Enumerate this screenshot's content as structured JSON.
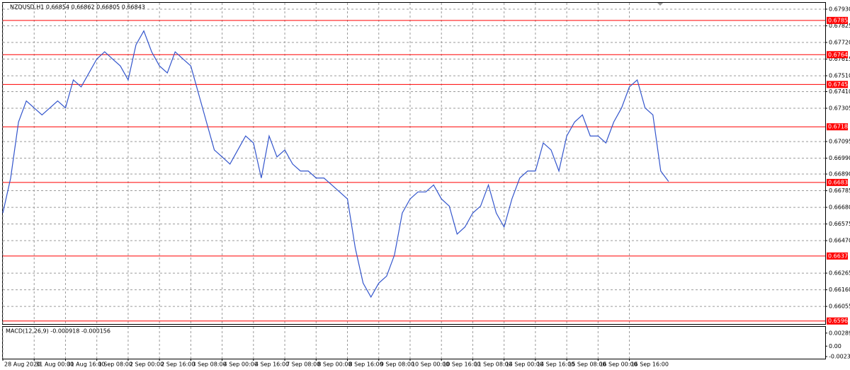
{
  "chart_data": {
    "type": "line",
    "title": "NZDUSD,H1  0.66854 0.66862 0.66805 0.66843",
    "series": [
      {
        "name": "NZDUSD",
        "color": "#3355cc",
        "values": [
          0.66644,
          0.66865,
          0.67218,
          0.67351,
          0.67307,
          0.67263,
          0.67307,
          0.67351,
          0.67307,
          0.67484,
          0.6744,
          0.67528,
          0.67616,
          0.67661,
          0.67616,
          0.67572,
          0.67484,
          0.67705,
          0.67793,
          0.67661,
          0.67572,
          0.67528,
          0.67661,
          0.67616,
          0.67572,
          0.67395,
          0.67218,
          0.67042,
          0.66998,
          0.66953,
          0.67042,
          0.6713,
          0.67086,
          0.66865,
          0.6713,
          0.66998,
          0.67042,
          0.66953,
          0.66909,
          0.66909,
          0.66865,
          0.66865,
          0.66821,
          0.66777,
          0.66733,
          0.66423,
          0.66202,
          0.66114,
          0.66202,
          0.66246,
          0.66379,
          0.66644,
          0.66733,
          0.66777,
          0.66777,
          0.66821,
          0.66733,
          0.66688,
          0.66511,
          0.66556,
          0.66644,
          0.66688,
          0.66821,
          0.66644,
          0.66556,
          0.66733,
          0.66865,
          0.66909,
          0.66909,
          0.67086,
          0.67042,
          0.66909,
          0.6713,
          0.67218,
          0.67263,
          0.6713,
          0.6713,
          0.67086,
          0.67218,
          0.67307,
          0.6744,
          0.67484,
          0.67307,
          0.67263,
          0.66909,
          0.66843
        ]
      }
    ],
    "xlim": [
      0,
      105
    ],
    "xticks": [
      {
        "value": 0,
        "label": "28 Aug 2020"
      },
      {
        "value": 4,
        "label": "31 Aug 00:00"
      },
      {
        "value": 8,
        "label": "31 Aug 16:00"
      },
      {
        "value": 12,
        "label": "1 Sep 08:00"
      },
      {
        "value": 16,
        "label": "2 Sep 00:00"
      },
      {
        "value": 20,
        "label": "2 Sep 16:00"
      },
      {
        "value": 24,
        "label": "3 Sep 08:00"
      },
      {
        "value": 28,
        "label": "4 Sep 00:00"
      },
      {
        "value": 32,
        "label": "4 Sep 16:00"
      },
      {
        "value": 36,
        "label": "7 Sep 08:00"
      },
      {
        "value": 40,
        "label": "8 Sep 00:00"
      },
      {
        "value": 44,
        "label": "8 Sep 16:00"
      },
      {
        "value": 48,
        "label": "9 Sep 08:00"
      },
      {
        "value": 52,
        "label": "10 Sep 00:00"
      },
      {
        "value": 56,
        "label": "10 Sep 16:00"
      },
      {
        "value": 60,
        "label": "11 Sep 08:00"
      },
      {
        "value": 64,
        "label": "14 Sep 00:00"
      },
      {
        "value": 68,
        "label": "14 Sep 16:00"
      },
      {
        "value": 72,
        "label": "15 Sep 08:00"
      },
      {
        "value": 76,
        "label": "16 Sep 00:00"
      },
      {
        "value": 80,
        "label": "16 Sep 16:00"
      }
    ],
    "ylim": [
      0.65944,
      0.6797
    ],
    "yticks": [
      {
        "value": 0.6793,
        "label": "0.67930"
      },
      0.67825,
      {
        "value": 0.6772,
        "label": "0.67720"
      },
      0.67615,
      {
        "value": 0.6751,
        "label": "0.67510"
      },
      {
        "value": 0.6741,
        "label": "0.67410"
      },
      0.67305,
      0.67095,
      {
        "value": 0.6699,
        "label": "0.66990"
      },
      {
        "value": 0.6689,
        "label": "0.66890"
      },
      0.66785,
      {
        "value": 0.6668,
        "label": "0.66680"
      },
      0.66575,
      {
        "value": 0.6647,
        "label": "0.66470"
      },
      0.66265,
      {
        "value": 0.6616,
        "label": "0.66160"
      },
      0.66055
    ],
    "levels": [
      0.67859,
      0.67643,
      0.67455,
      0.67188,
      0.66837,
      0.66373,
      0.65963
    ],
    "level_color": "#ff0000",
    "grid": true,
    "indicator": {
      "label": "MACD(12,26,9) -0.000918 -0.000156",
      "ylim": [
        -0.002774,
        0.004269
      ],
      "yticks": [
        0.002891,
        {
          "value": 0,
          "label": "0.00"
        },
        -0.002315
      ]
    }
  }
}
